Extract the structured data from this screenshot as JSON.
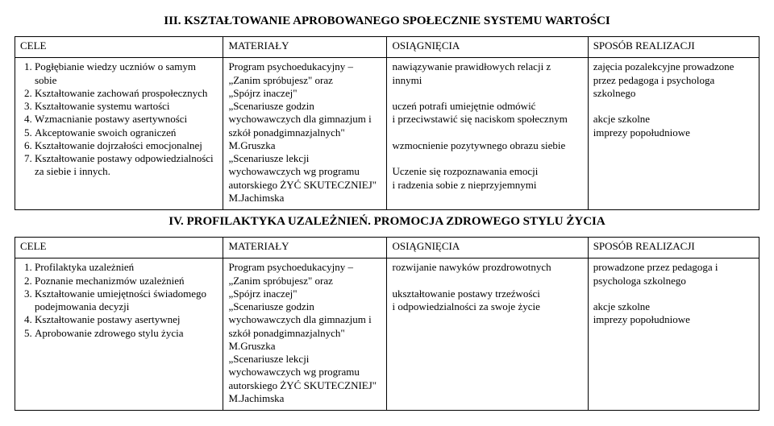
{
  "section3": {
    "title": "III. KSZTAŁTOWANIE APROBOWANEGO SPOŁECZNIE SYSTEMU WARTOŚCI",
    "headers": {
      "c1": "CELE",
      "c2": "MATERIAŁY",
      "c3": "OSIĄGNIĘCIA",
      "c4": "SPOSÓB REALIZACJI"
    },
    "cele": [
      "Pogłębianie wiedzy uczniów o samym sobie",
      "Kształtowanie zachowań prospołecznych",
      "Kształtowanie systemu wartości",
      "Wzmacnianie postawy asertywności",
      "Akceptowanie swoich ograniczeń",
      "Kształtowanie dojrzałości emocjonalnej",
      "Kształtowanie postawy odpowiedzialności za siebie i innych."
    ],
    "materialy": [
      "Program psychoedukacyjny –",
      "„Zanim spróbujesz\" oraz",
      "„Spójrz inaczej\"",
      "„Scenariusze godzin wychowawczych dla gimnazjum i szkół ponadgimnazjalnych\" M.Gruszka",
      "„Scenariusze lekcji wychowawczych wg programu autorskiego ŻYĆ SKUTECZNIEJ\" M.Jachimska"
    ],
    "osiagniecia": [
      "nawiązywanie prawidłowych relacji z innymi",
      "",
      "uczeń potrafi umiejętnie odmówić",
      "i przeciwstawić się naciskom społecznym",
      "",
      "wzmocnienie pozytywnego obrazu siebie",
      "",
      "Uczenie się rozpoznawania emocji",
      "i radzenia sobie z nieprzyjemnymi"
    ],
    "sposob": [
      "zajęcia pozalekcyjne prowadzone przez pedagoga i psychologa szkolnego",
      "",
      "akcje szkolne",
      "imprezy popołudniowe"
    ]
  },
  "section4": {
    "title": "IV. PROFILAKTYKA UZALEŻNIEŃ. PROMOCJA ZDROWEGO STYLU ŻYCIA",
    "headers": {
      "c1": "CELE",
      "c2": "MATERIAŁY",
      "c3": "OSIĄGNIĘCIA",
      "c4": "SPOSÓB REALIZACJI"
    },
    "cele": [
      "Profilaktyka uzależnień",
      "Poznanie mechanizmów uzależnień",
      "Kształtowanie umiejętności świadomego podejmowania decyzji",
      "Kształtowanie postawy asertywnej",
      "Aprobowanie zdrowego stylu życia"
    ],
    "materialy": [
      "Program psychoedukacyjny –",
      "„Zanim spróbujesz\" oraz",
      "„Spójrz inaczej\"",
      "„Scenariusze godzin wychowawczych dla gimnazjum i szkół ponadgimnazjalnych\" M.Gruszka",
      "„Scenariusze lekcji wychowawczych wg programu autorskiego ŻYĆ SKUTECZNIEJ\" M.Jachimska"
    ],
    "osiagniecia": [
      "rozwijanie nawyków prozdrowotnych",
      "",
      "ukształtowanie postawy trzeźwości",
      "i odpowiedzialności za swoje życie"
    ],
    "sposob": [
      "prowadzone przez pedagoga i psychologa szkolnego",
      "",
      "akcje szkolne",
      "imprezy popołudniowe"
    ]
  }
}
